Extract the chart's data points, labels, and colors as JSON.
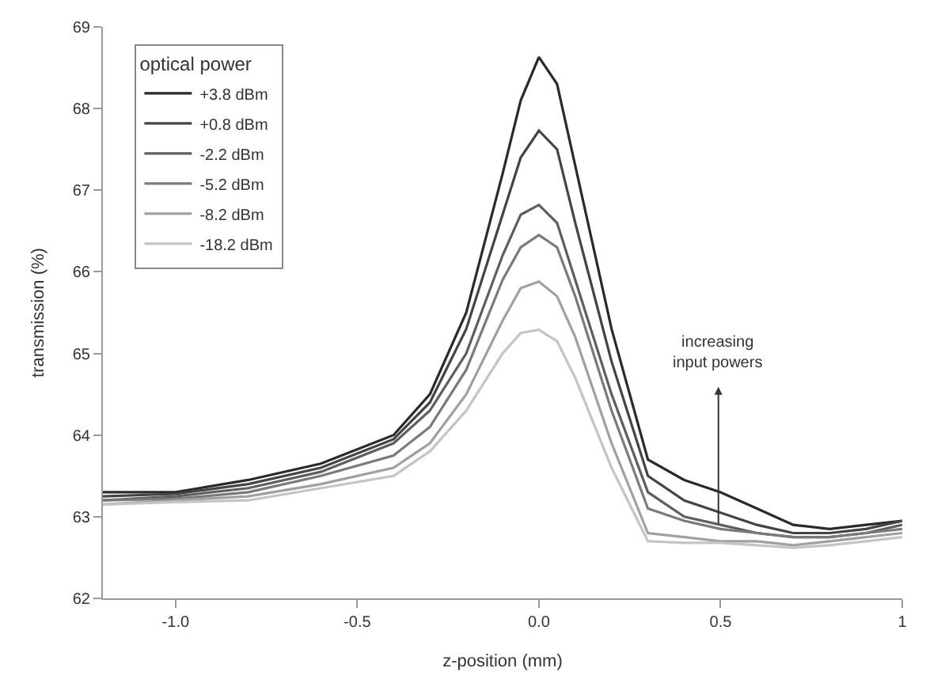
{
  "chart_data": {
    "type": "line",
    "xlabel": "z-position (mm)",
    "ylabel": "transmission (%)",
    "legend_title": "optical power",
    "legend": "top left",
    "marker": "none",
    "line_style": "solid",
    "xlim": [
      -1.2,
      1.0
    ],
    "xticks": [
      {
        "value": -1,
        "label": "-1.0"
      },
      -0.5,
      {
        "value": 0,
        "label": "0.0"
      },
      0.5,
      1
    ],
    "ylim": [
      62,
      69
    ],
    "yticks": [
      62,
      63,
      64,
      65,
      66,
      67,
      68,
      69
    ],
    "x": [
      -1.2,
      -1.0,
      -0.8,
      -0.6,
      -0.4,
      -0.3,
      -0.2,
      -0.1,
      -0.05,
      0,
      0.05,
      0.1,
      0.2,
      0.3,
      0.4,
      0.5,
      0.6,
      0.7,
      0.8,
      0.9,
      1.0
    ],
    "series": [
      {
        "name": "+3.8 dBm",
        "color": "#2a2a2a",
        "values": [
          63.3,
          63.3,
          63.45,
          63.65,
          64.0,
          64.5,
          65.5,
          67.2,
          68.1,
          68.63,
          68.3,
          67.3,
          65.3,
          63.7,
          63.45,
          63.3,
          63.1,
          62.9,
          62.85,
          62.9,
          62.95
        ]
      },
      {
        "name": "+0.8 dBm",
        "color": "#444444",
        "values": [
          63.25,
          63.28,
          63.4,
          63.6,
          63.95,
          64.4,
          65.3,
          66.7,
          67.4,
          67.73,
          67.5,
          66.6,
          64.9,
          63.5,
          63.2,
          63.05,
          62.9,
          62.8,
          62.8,
          62.85,
          62.95
        ]
      },
      {
        "name": "-2.2 dBm",
        "color": "#5e5e5e",
        "values": [
          63.2,
          63.25,
          63.35,
          63.55,
          63.9,
          64.3,
          65.0,
          66.2,
          66.7,
          66.82,
          66.6,
          65.9,
          64.5,
          63.3,
          63.0,
          62.9,
          62.8,
          62.75,
          62.75,
          62.8,
          62.9
        ]
      },
      {
        "name": "-5.2 dBm",
        "color": "#7a7a7a",
        "values": [
          63.2,
          63.22,
          63.3,
          63.5,
          63.75,
          64.1,
          64.8,
          65.9,
          66.3,
          66.45,
          66.3,
          65.7,
          64.3,
          63.1,
          62.95,
          62.85,
          62.8,
          62.75,
          62.75,
          62.8,
          62.85
        ]
      },
      {
        "name": "-8.2 dBm",
        "color": "#a0a0a0",
        "values": [
          63.15,
          63.2,
          63.25,
          63.4,
          63.6,
          63.9,
          64.5,
          65.4,
          65.8,
          65.88,
          65.7,
          65.2,
          63.9,
          62.8,
          62.75,
          62.7,
          62.7,
          62.65,
          62.7,
          62.75,
          62.8
        ]
      },
      {
        "name": "-18.2 dBm",
        "color": "#c4c4c4",
        "values": [
          63.15,
          63.18,
          63.2,
          63.35,
          63.5,
          63.8,
          64.3,
          65.0,
          65.25,
          65.29,
          65.15,
          64.7,
          63.6,
          62.7,
          62.68,
          62.68,
          62.65,
          62.62,
          62.65,
          62.7,
          62.75
        ]
      }
    ],
    "annotations": [
      "increasing\ninput powers"
    ]
  }
}
